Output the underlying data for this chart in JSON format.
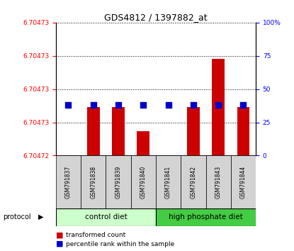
{
  "title": "GDS4812 / 1397882_at",
  "samples": [
    "GSM791837",
    "GSM791838",
    "GSM791839",
    "GSM791840",
    "GSM791841",
    "GSM791842",
    "GSM791843",
    "GSM791844"
  ],
  "ylim_left": [
    6.70472,
    6.704731
  ],
  "ylim_right": [
    0,
    100
  ],
  "yticks_left_vals": [
    6.70472,
    6.704722,
    6.704724,
    6.704726,
    6.704728,
    6.70473
  ],
  "yticks_left_labels": [
    "6.70472",
    "6.70473",
    "6.70473",
    "6.70473",
    "6.70473",
    "6.70473"
  ],
  "yticks_right": [
    0,
    25,
    50,
    75,
    100
  ],
  "yticks_right_labels": [
    "0",
    "25",
    "50",
    "75",
    "100%"
  ],
  "bar_bottom": 6.70472,
  "red_bar_tops": [
    6.70472,
    6.704724,
    6.704724,
    6.704722,
    6.70472,
    6.704724,
    6.704728,
    6.704724
  ],
  "blue_percentiles": [
    38,
    38,
    38,
    38,
    38,
    38,
    38,
    38
  ],
  "protocol_label": "protocol",
  "control_diet_label": "control diet",
  "high_phosphate_label": "high phosphate diet",
  "legend_red": "transformed count",
  "legend_blue": "percentile rank within the sample",
  "bar_color": "#cc0000",
  "blue_color": "#0000cc",
  "control_diet_color": "#ccffcc",
  "high_phosphate_color": "#44cc44",
  "sample_box_color": "#d3d3d3",
  "background_color": "#ffffff",
  "grid_color": "#000000",
  "n_control": 4,
  "n_high": 4
}
